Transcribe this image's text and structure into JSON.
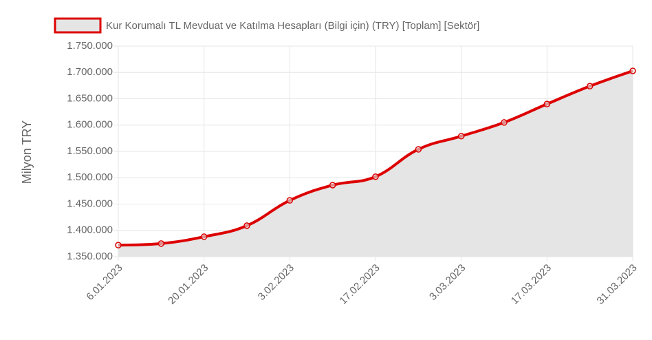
{
  "chart_data": {
    "type": "line",
    "legend": "Kur Korumalı TL Mevduat ve Katılma Hesapları (Bilgi için) (TRY) [Toplam] [Sektör]",
    "y_label": "Milyon TRY",
    "categories": [
      "6.01.2023",
      null,
      "20.01.2023",
      null,
      "3.02.2023",
      null,
      "17.02.2023",
      null,
      "3.03.2023",
      null,
      "17.03.2023",
      null,
      "31.03.2023"
    ],
    "series": [
      {
        "name": "Kur Korumalı TL Mevduat ve Katılma Hesapları (Bilgi için) (TRY) [Toplam] [Sektör]",
        "color": "#dd0000",
        "values": [
          1372000,
          1375000,
          1388000,
          1409000,
          1457000,
          1486000,
          1502000,
          1554000,
          1579000,
          1605000,
          1640000,
          1674000,
          1703000
        ]
      }
    ],
    "ylim": [
      1350000,
      1750000
    ],
    "yticks": [
      {
        "value": 1350000,
        "label": "1.350.000"
      },
      {
        "value": 1400000,
        "label": "1.400.000"
      },
      {
        "value": 1450000,
        "label": "1.450.000"
      },
      {
        "value": 1500000,
        "label": "1.500.000"
      },
      {
        "value": 1550000,
        "label": "1.550.000"
      },
      {
        "value": 1600000,
        "label": "1.600.000"
      },
      {
        "value": 1650000,
        "label": "1.650.000"
      },
      {
        "value": 1700000,
        "label": "1.700.000"
      },
      {
        "value": 1750000,
        "label": "1.750.000"
      }
    ],
    "fill": true,
    "grid": true
  }
}
